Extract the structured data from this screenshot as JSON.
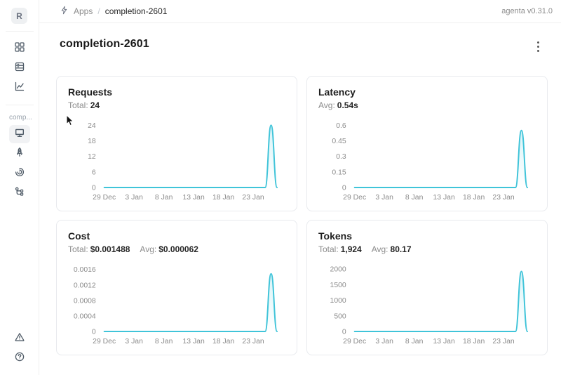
{
  "header": {
    "breadcrumb": {
      "section": "Apps",
      "separator": "/",
      "current": "completion-2601"
    },
    "version": "agenta v0.31.0"
  },
  "sidebar": {
    "avatar_initial": "R",
    "app_label": "comp...",
    "icon_names": [
      "apps-grid-icon",
      "table-icon",
      "line-chart-icon",
      "monitor-icon",
      "rocket-icon",
      "observability-icon",
      "traces-tree-icon",
      "alert-triangle-icon",
      "help-circle-icon"
    ],
    "selected_item": "monitor"
  },
  "page": {
    "title": "completion-2601"
  },
  "colors": {
    "accent_line": "#40c4d9",
    "accent_fill": "rgba(64,196,217,0.20)"
  },
  "chart_data": [
    {
      "id": "requests",
      "type": "area",
      "title": "Requests",
      "stats": [
        {
          "label": "Total:",
          "value": "24"
        }
      ],
      "x_ticks": [
        "29 Dec",
        "3 Jan",
        "8 Jan",
        "13 Jan",
        "18 Jan",
        "23 Jan"
      ],
      "x_tick_days": [
        0,
        5,
        10,
        15,
        20,
        25
      ],
      "y_ticks": [
        {
          "label": "0",
          "value": 0
        },
        {
          "label": "6",
          "value": 6
        },
        {
          "label": "12",
          "value": 12
        },
        {
          "label": "18",
          "value": 18
        },
        {
          "label": "24",
          "value": 24
        }
      ],
      "ylim": [
        0,
        26
      ],
      "values": [
        0,
        0,
        0,
        0,
        0,
        0,
        0,
        0,
        0,
        0,
        0,
        0,
        0,
        0,
        0,
        0,
        0,
        0,
        0,
        0,
        0,
        0,
        0,
        0,
        0,
        0,
        0,
        0,
        24,
        0
      ]
    },
    {
      "id": "latency",
      "type": "area",
      "title": "Latency",
      "stats": [
        {
          "label": "Avg:",
          "value": "0.54s"
        }
      ],
      "x_ticks": [
        "29 Dec",
        "3 Jan",
        "8 Jan",
        "13 Jan",
        "18 Jan",
        "23 Jan"
      ],
      "x_tick_days": [
        0,
        5,
        10,
        15,
        20,
        25
      ],
      "y_ticks": [
        {
          "label": "0",
          "value": 0
        },
        {
          "label": "0.15",
          "value": 0.15
        },
        {
          "label": "0.3",
          "value": 0.3
        },
        {
          "label": "0.45",
          "value": 0.45
        },
        {
          "label": "0.6",
          "value": 0.6
        }
      ],
      "ylim": [
        0,
        0.65
      ],
      "values": [
        0,
        0,
        0,
        0,
        0,
        0,
        0,
        0,
        0,
        0,
        0,
        0,
        0,
        0,
        0,
        0,
        0,
        0,
        0,
        0,
        0,
        0,
        0,
        0,
        0,
        0,
        0,
        0,
        0.55,
        0
      ]
    },
    {
      "id": "cost",
      "type": "area",
      "title": "Cost",
      "stats": [
        {
          "label": "Total:",
          "value": "$0.001488"
        },
        {
          "label": "Avg:",
          "value": "$0.000062"
        }
      ],
      "x_ticks": [
        "29 Dec",
        "3 Jan",
        "8 Jan",
        "13 Jan",
        "18 Jan",
        "23 Jan"
      ],
      "x_tick_days": [
        0,
        5,
        10,
        15,
        20,
        25
      ],
      "y_ticks": [
        {
          "label": "0",
          "value": 0
        },
        {
          "label": "0.0004",
          "value": 0.0004
        },
        {
          "label": "0.0008",
          "value": 0.0008
        },
        {
          "label": "0.0012",
          "value": 0.0012
        },
        {
          "label": "0.0016",
          "value": 0.0016
        }
      ],
      "ylim": [
        0,
        0.00174
      ],
      "values": [
        0,
        0,
        0,
        0,
        0,
        0,
        0,
        0,
        0,
        0,
        0,
        0,
        0,
        0,
        0,
        0,
        0,
        0,
        0,
        0,
        0,
        0,
        0,
        0,
        0,
        0,
        0,
        0,
        0.001488,
        0
      ]
    },
    {
      "id": "tokens",
      "type": "area",
      "title": "Tokens",
      "stats": [
        {
          "label": "Total:",
          "value": "1,924"
        },
        {
          "label": "Avg:",
          "value": "80.17"
        }
      ],
      "x_ticks": [
        "29 Dec",
        "3 Jan",
        "8 Jan",
        "13 Jan",
        "18 Jan",
        "23 Jan"
      ],
      "x_tick_days": [
        0,
        5,
        10,
        15,
        20,
        25
      ],
      "y_ticks": [
        {
          "label": "0",
          "value": 0
        },
        {
          "label": "500",
          "value": 500
        },
        {
          "label": "1000",
          "value": 1000
        },
        {
          "label": "1500",
          "value": 1500
        },
        {
          "label": "2000",
          "value": 2000
        }
      ],
      "ylim": [
        0,
        2160
      ],
      "values": [
        0,
        0,
        0,
        0,
        0,
        0,
        0,
        0,
        0,
        0,
        0,
        0,
        0,
        0,
        0,
        0,
        0,
        0,
        0,
        0,
        0,
        0,
        0,
        0,
        0,
        0,
        0,
        0,
        1924,
        0
      ]
    }
  ]
}
